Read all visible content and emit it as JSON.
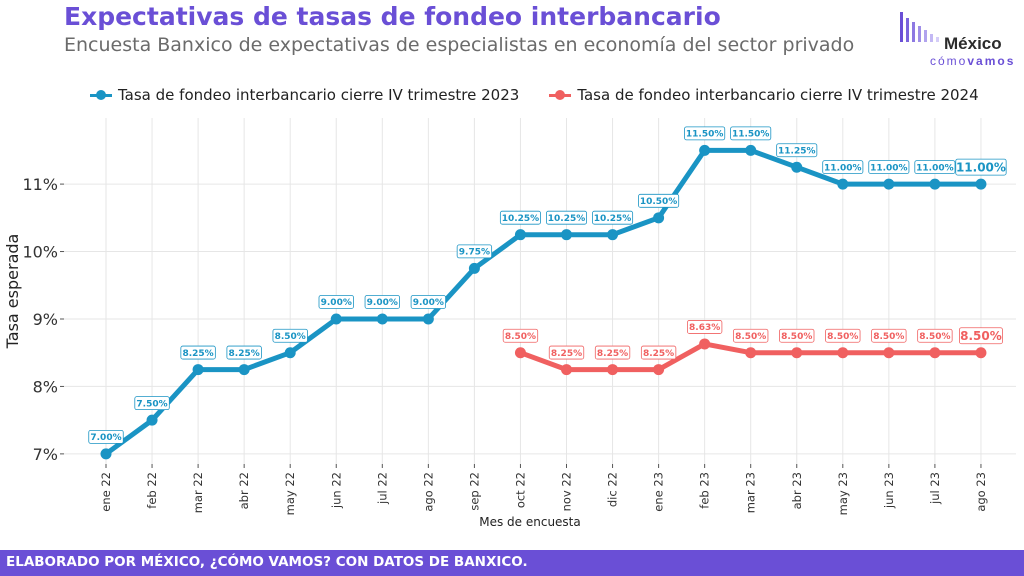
{
  "header": {
    "title": "Expectativas de tasas de fondeo interbancario",
    "subtitle": "Encuesta Banxico de expectativas de especialistas en economía del sector privado"
  },
  "logo": {
    "top": "México",
    "bottom_light": "cómo",
    "bottom_bold": "vamos"
  },
  "footer": {
    "text": "ELABORADO POR MÉXICO, ¿CÓMO VAMOS? CON DATOS DE BANXICO."
  },
  "colors": {
    "accent": "#6a4fd6",
    "series1": "#1a94c4",
    "series2": "#f06060",
    "grid": "#e6e6e6"
  },
  "chart_data": {
    "type": "line",
    "xlabel": "Mes de encuesta",
    "ylabel": "Tasa esperada",
    "categories": [
      "ene 22",
      "feb 22",
      "mar 22",
      "abr 22",
      "may 22",
      "jun 22",
      "jul 22",
      "ago 22",
      "sep 22",
      "oct 22",
      "nov 22",
      "dic 22",
      "ene 23",
      "feb 23",
      "mar 23",
      "abr 23",
      "may 23",
      "jun 23",
      "jul 23",
      "ago 23"
    ],
    "ylim": [
      6.85,
      11.98
    ],
    "yticks": [
      7,
      8,
      9,
      10,
      11
    ],
    "ytick_labels": [
      "7%",
      "8%",
      "9%",
      "10%",
      "11%"
    ],
    "grid": true,
    "legend_position": "top",
    "series": [
      {
        "name": "Tasa de fondeo interbancario cierre IV trimestre 2023",
        "color": "#1a94c4",
        "values": [
          7.0,
          7.5,
          8.25,
          8.25,
          8.5,
          9.0,
          9.0,
          9.0,
          9.75,
          10.25,
          10.25,
          10.25,
          10.5,
          11.5,
          11.5,
          11.25,
          11.0,
          11.0,
          11.0,
          11.0
        ],
        "labels": [
          "7.00%",
          "7.50%",
          "8.25%",
          "8.25%",
          "8.50%",
          "9.00%",
          "9.00%",
          "9.00%",
          "9.75%",
          "10.25%",
          "10.25%",
          "10.25%",
          "10.50%",
          "11.50%",
          "11.50%",
          "11.25%",
          "11.00%",
          "11.00%",
          "11.00%",
          "11.00%"
        ]
      },
      {
        "name": "Tasa de fondeo interbancario cierre IV trimestre 2024",
        "color": "#f06060",
        "values": [
          null,
          null,
          null,
          null,
          null,
          null,
          null,
          null,
          null,
          8.5,
          8.25,
          8.25,
          8.25,
          8.63,
          8.5,
          8.5,
          8.5,
          8.5,
          8.5,
          8.5
        ],
        "labels": [
          null,
          null,
          null,
          null,
          null,
          null,
          null,
          null,
          null,
          "8.50%",
          "8.25%",
          "8.25%",
          "8.25%",
          "8.63%",
          "8.50%",
          "8.50%",
          "8.50%",
          "8.50%",
          "8.50%",
          "8.50%"
        ]
      }
    ]
  }
}
